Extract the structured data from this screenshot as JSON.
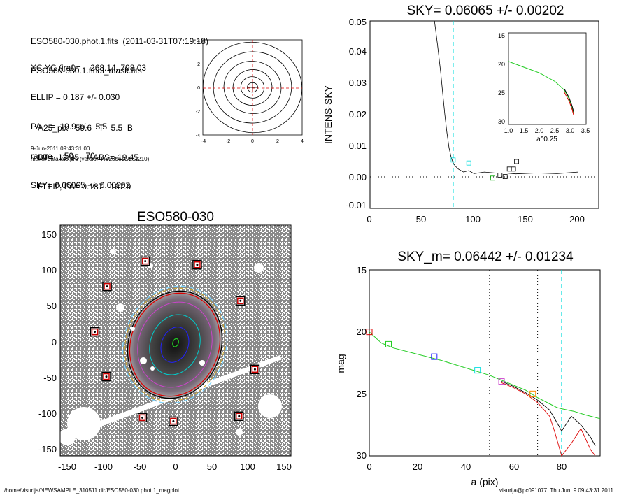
{
  "header": {
    "files": [
      "ESO580-030.phot.1.fits  (2011-03-31T07:19:18)",
      "ESO580-030.1.final_mask.fits"
    ],
    "params": [
      "XC,YC (iraf)=    268.14, 798.03",
      "ELLIP = 0.187 +/- 0.030",
      "PA    =  19.9 +/-   5.5",
      "range=   50.-   70.",
      "SKY= 0.06065 +/- 0.00202"
    ],
    "results": [
      "A25_pix= 59.6   T= 5.5  B",
      "BT=  13.95   MABS=-19.45",
      "ELLIP, PA= 0.187   167.9"
    ],
    "date": "9-Jun-2011 09:43:31.00",
    "program": "make_datalist0.pro (version HS230610/211210)"
  },
  "footer": {
    "path": "/home/visurija/NEWSAMPLE_310511.dir/ESO580-030.phot.1_magplot",
    "user": "visurija@pc091077  Thu Jun  9 09:43:31 2011"
  },
  "colors": {
    "cyan": "#00dddd",
    "red": "#dd0000",
    "green": "#22cc22",
    "blue": "#2222ff",
    "magenta": "#cc44cc",
    "orange": "#ff8800"
  },
  "chart_data": [
    {
      "type": "contour",
      "panel": "centroid",
      "xlim": [
        -4,
        4
      ],
      "ylim": [
        -4,
        4
      ],
      "x_ticks": [
        "-4",
        "-2",
        "0",
        "2",
        "4"
      ],
      "y_ticks": [
        "-4",
        "-2",
        "0",
        "2",
        "4"
      ],
      "contour_radii": [
        0.4,
        0.9,
        1.5,
        2.2,
        3.0,
        3.8
      ]
    },
    {
      "type": "line",
      "panel": "sky",
      "title": "SKY= 0.06065 +/- 0.00202",
      "ylabel": "INTENS-SKY",
      "xlim": [
        0,
        220
      ],
      "ylim": [
        -0.012,
        0.05
      ],
      "x_ticks": [
        "0",
        "50",
        "100",
        "150",
        "200"
      ],
      "y_ticks": [
        "-0.01",
        "0.00",
        "0.01",
        "0.02",
        "0.03",
        "0.04",
        "0.05"
      ],
      "vline_x": 80,
      "profile": {
        "x": [
          62,
          65,
          68,
          70,
          72,
          74,
          76,
          78,
          80,
          82,
          85,
          90,
          95,
          100,
          110,
          120,
          130,
          140,
          160,
          180,
          200
        ],
        "y": [
          0.05,
          0.042,
          0.033,
          0.026,
          0.019,
          0.013,
          0.008,
          0.005,
          0.003,
          0.002,
          0.001,
          0.0,
          0.0005,
          -0.0005,
          0.0,
          -0.0003,
          -0.0003,
          -0.0006,
          -0.0003,
          -0.0005,
          0.0
        ]
      },
      "squares": {
        "x": [
          80,
          95,
          118,
          125,
          130,
          134,
          138,
          141
        ],
        "y": [
          0.004,
          0.003,
          -0.002,
          -0.001,
          -0.0015,
          0.001,
          0.001,
          0.0035
        ]
      },
      "inset": {
        "xlabel": "a^0.25",
        "xlim": [
          1.0,
          3.5
        ],
        "ylim": [
          15,
          31
        ],
        "x_ticks": [
          "1.0",
          "1.5",
          "2.0",
          "2.5",
          "3.0",
          "3.5"
        ],
        "y_ticks": [
          "15",
          "20",
          "25",
          "30"
        ],
        "x": [
          1.0,
          1.5,
          2.0,
          2.5,
          2.8,
          2.95,
          3.05,
          3.1
        ],
        "y": [
          20,
          21,
          22,
          23.5,
          25,
          26.5,
          28,
          29
        ]
      }
    },
    {
      "type": "line",
      "panel": "mag",
      "title": "SKY_m=  0.06442 +/- 0.01234",
      "xlabel": "a (pix)",
      "ylabel": "mag",
      "xlim": [
        0,
        96
      ],
      "ylim": [
        30,
        15
      ],
      "x_ticks": [
        "0",
        "20",
        "40",
        "60",
        "80"
      ],
      "y_ticks": [
        "15",
        "20",
        "25",
        "30"
      ],
      "vlines_dotted": [
        50,
        70
      ],
      "vline_x": 80,
      "green": {
        "x": [
          0,
          5,
          10,
          20,
          30,
          40,
          50,
          55,
          60,
          65,
          70,
          75,
          78,
          80,
          85,
          90,
          96
        ],
        "y": [
          20.0,
          20.9,
          21.3,
          21.8,
          22.3,
          22.9,
          23.5,
          23.9,
          24.3,
          24.7,
          25.3,
          25.8,
          26.1,
          26.2,
          26.4,
          26.7,
          27.0
        ]
      },
      "black": {
        "x": [
          55,
          60,
          65,
          70,
          75,
          78,
          80,
          84,
          88,
          92,
          94
        ],
        "y": [
          24.0,
          24.4,
          24.9,
          25.5,
          26.3,
          27.3,
          28.0,
          26.8,
          27.5,
          28.5,
          29.2
        ]
      },
      "red": {
        "x": [
          55,
          60,
          65,
          70,
          75,
          77,
          80,
          84,
          88,
          92,
          94
        ],
        "y": [
          24.1,
          24.5,
          25.0,
          25.7,
          26.8,
          28.0,
          30.0,
          29.0,
          27.8,
          29.5,
          30.0
        ]
      },
      "squares": {
        "x": [
          0,
          8,
          27,
          45,
          55,
          68
        ],
        "y": [
          20.0,
          21.0,
          22.0,
          23.1,
          24.0,
          25.0
        ]
      }
    },
    {
      "type": "image",
      "panel": "galaxy",
      "title": "ESO580-030",
      "xlim": [
        -160,
        160
      ],
      "ylim": [
        -160,
        160
      ],
      "x_ticks": [
        "-150",
        "-100",
        "-50",
        "0",
        "50",
        "100",
        "150"
      ],
      "y_ticks": [
        "150",
        "100",
        "50",
        "0",
        "-50",
        "-100",
        "-150"
      ],
      "stars": {
        "x": [
          -42,
          30,
          -95,
          90,
          -112,
          110,
          -96,
          -46,
          -3,
          88
        ],
        "y": [
          110,
          105,
          75,
          55,
          12,
          -40,
          -50,
          -107,
          -112,
          -105
        ]
      }
    }
  ]
}
